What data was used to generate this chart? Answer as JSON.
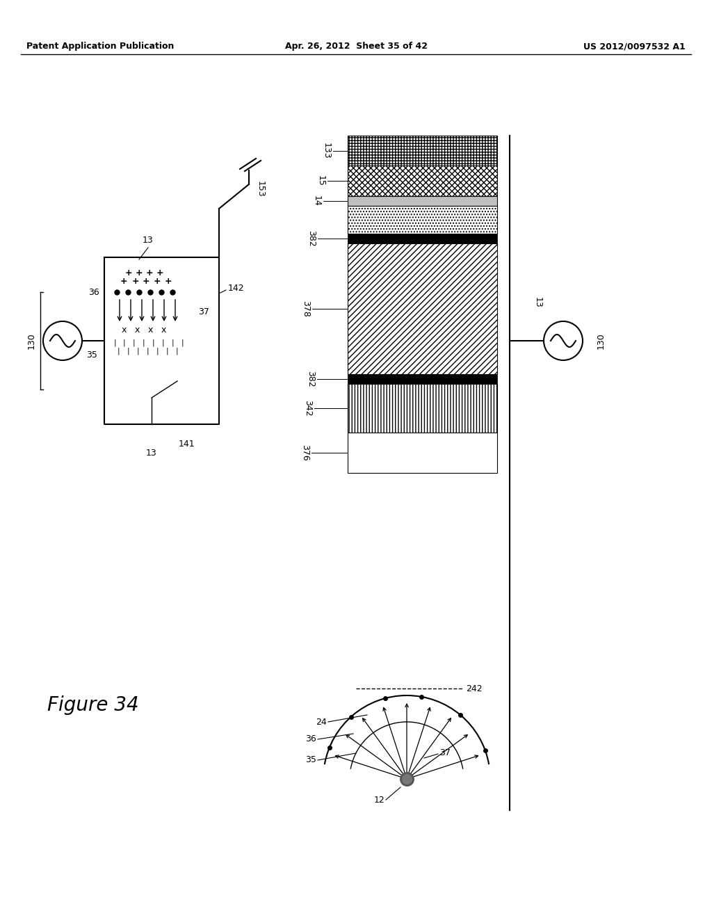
{
  "title_left": "Patent Application Publication",
  "title_center": "Apr. 26, 2012  Sheet 35 of 42",
  "title_right": "US 2012/0097532 A1",
  "figure_label": "Figure 34",
  "bg_color": "#ffffff",
  "line_color": "#000000"
}
